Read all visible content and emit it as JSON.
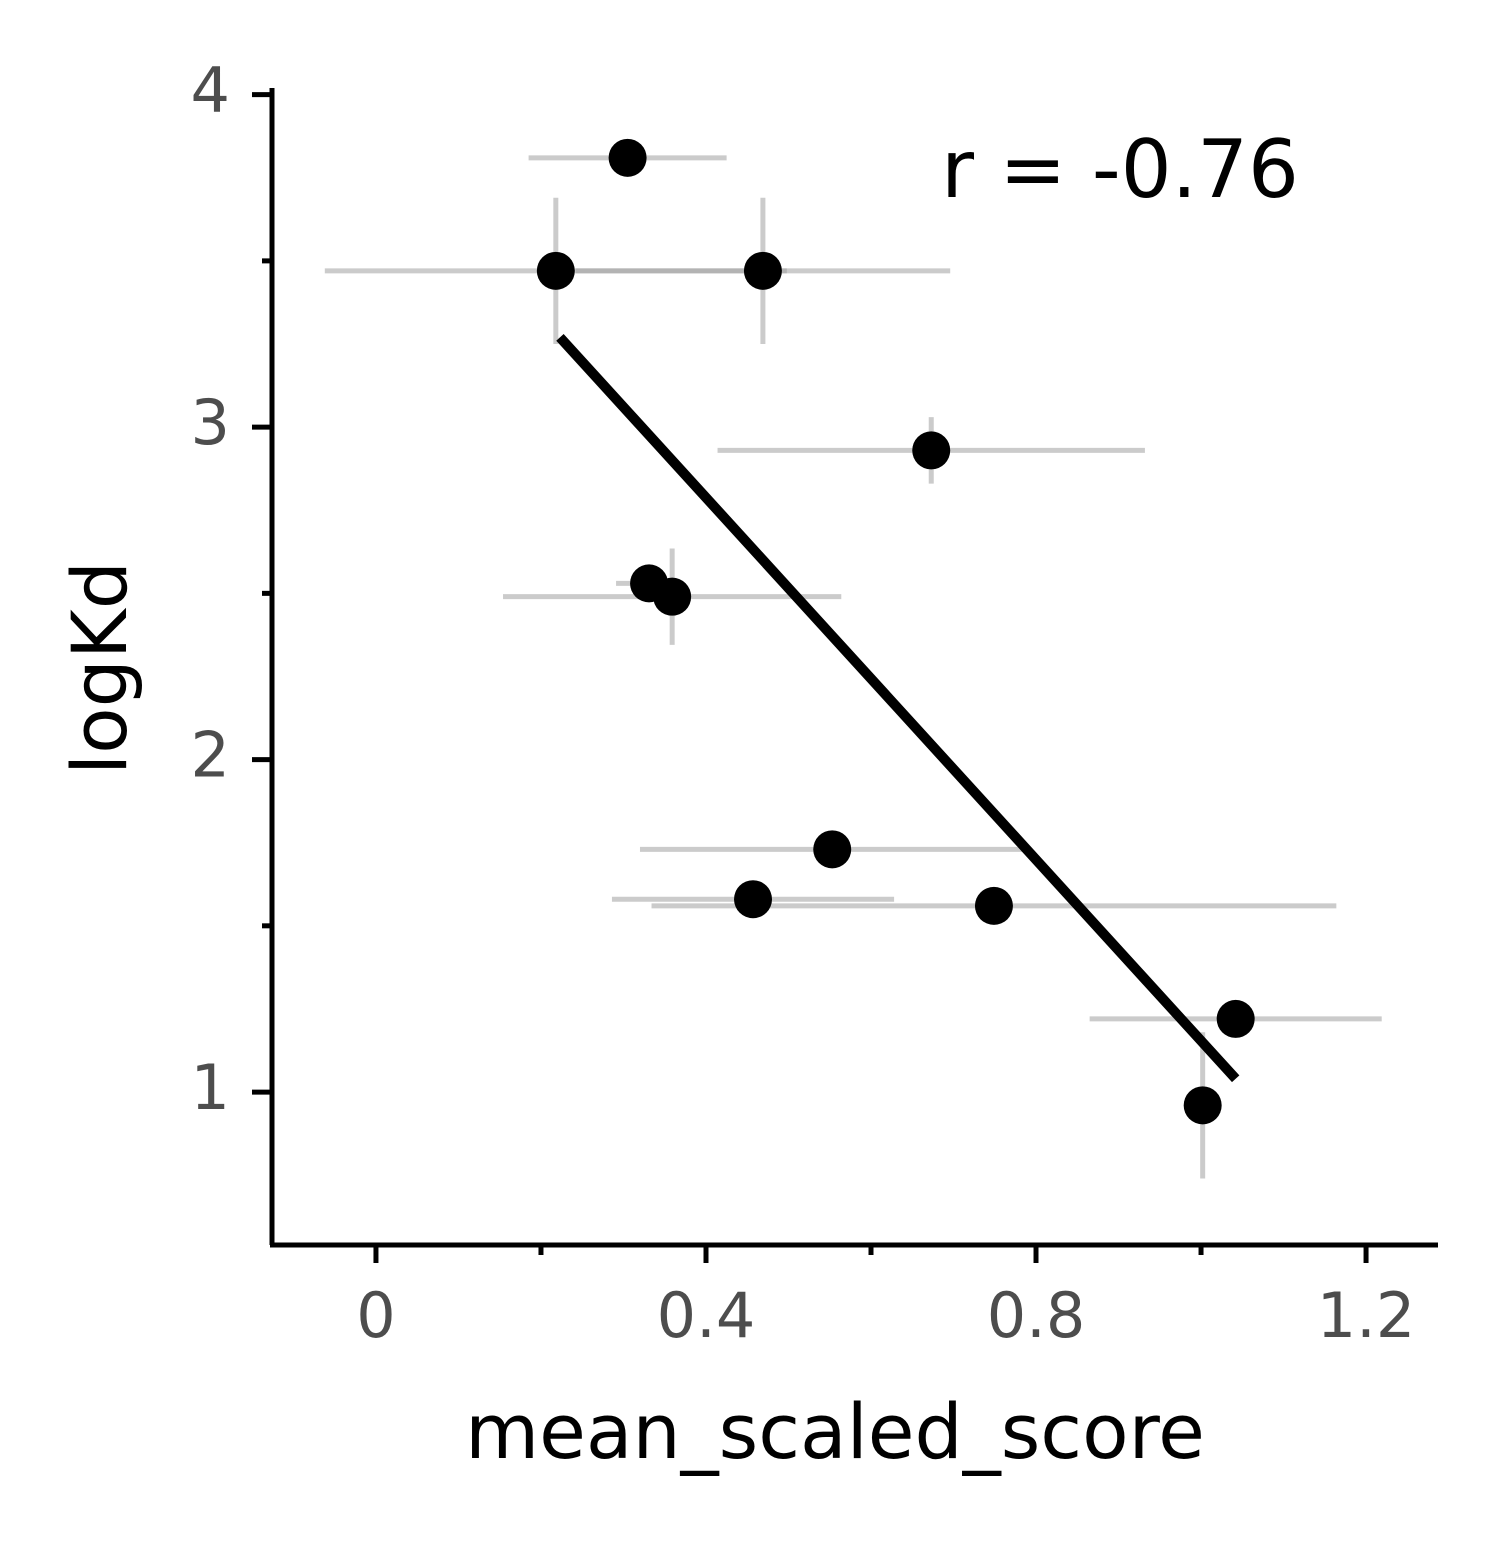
{
  "chart_data": {
    "type": "scatter",
    "xlabel": "mean_scaled_score",
    "ylabel": "logKd",
    "annotation": "r = -0.76",
    "x": [
      0.305,
      0.218,
      0.469,
      0.673,
      0.331,
      0.359,
      0.553,
      0.457,
      0.749,
      1.042,
      1.002
    ],
    "y": [
      3.81,
      3.47,
      3.47,
      2.93,
      2.53,
      2.49,
      1.73,
      1.58,
      1.56,
      1.22,
      0.96
    ],
    "xerr": [
      0.12,
      0.28,
      0.227,
      0.259,
      0.04,
      0.205,
      0.233,
      0.171,
      0.415,
      0.177,
      null
    ],
    "yerr": [
      null,
      0.22,
      0.22,
      0.1,
      null,
      0.145,
      null,
      null,
      null,
      null,
      0.22
    ],
    "color": "#000000",
    "error_color": "#a0a0a0",
    "fit": {
      "x": [
        0.223,
        1.042
      ],
      "y": [
        3.27,
        1.04
      ],
      "color": "#000000"
    },
    "xlim": [
      -0.126,
      1.286
    ],
    "ylim": [
      0.54,
      4.02
    ],
    "xticks": [
      0,
      0.4,
      0.8,
      1.2
    ],
    "xminorticks": [
      0.2,
      0.6,
      1.0
    ],
    "yticks": [
      1,
      2,
      3,
      4
    ],
    "yminorticks": [
      1.5,
      2.5,
      3.5
    ]
  }
}
